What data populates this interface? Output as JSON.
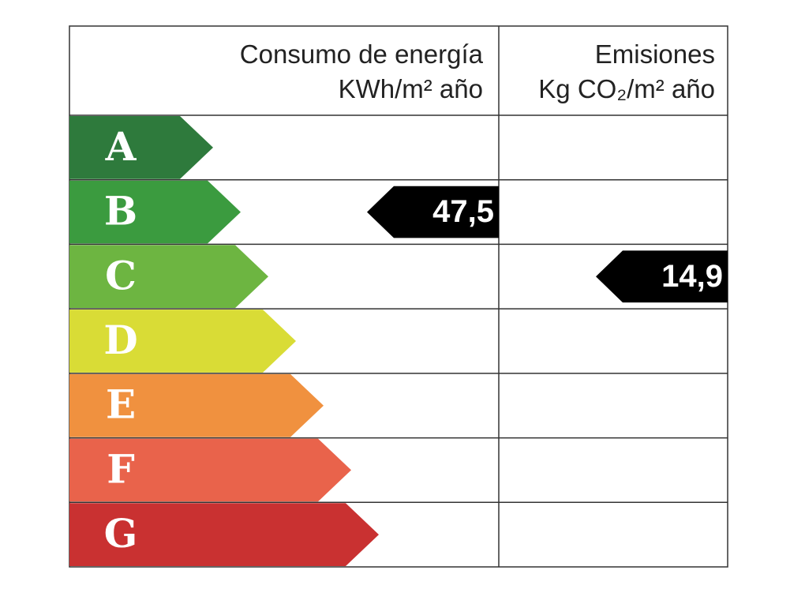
{
  "header": {
    "energy_title": "Consumo de energía",
    "energy_unit": "KWh/m² año",
    "emissions_title": "Emisiones",
    "emissions_unit": "Kg CO₂/m² año"
  },
  "classes": [
    {
      "letter": "A",
      "color": "#2e7a3c"
    },
    {
      "letter": "B",
      "color": "#3b9b3f"
    },
    {
      "letter": "C",
      "color": "#6db541"
    },
    {
      "letter": "D",
      "color": "#d9dc36"
    },
    {
      "letter": "E",
      "color": "#f0913f"
    },
    {
      "letter": "F",
      "color": "#e9634b"
    },
    {
      "letter": "G",
      "color": "#c93131"
    }
  ],
  "energy": {
    "value": "47,5",
    "class": "B"
  },
  "emissions": {
    "value": "14,9",
    "class": "C"
  }
}
